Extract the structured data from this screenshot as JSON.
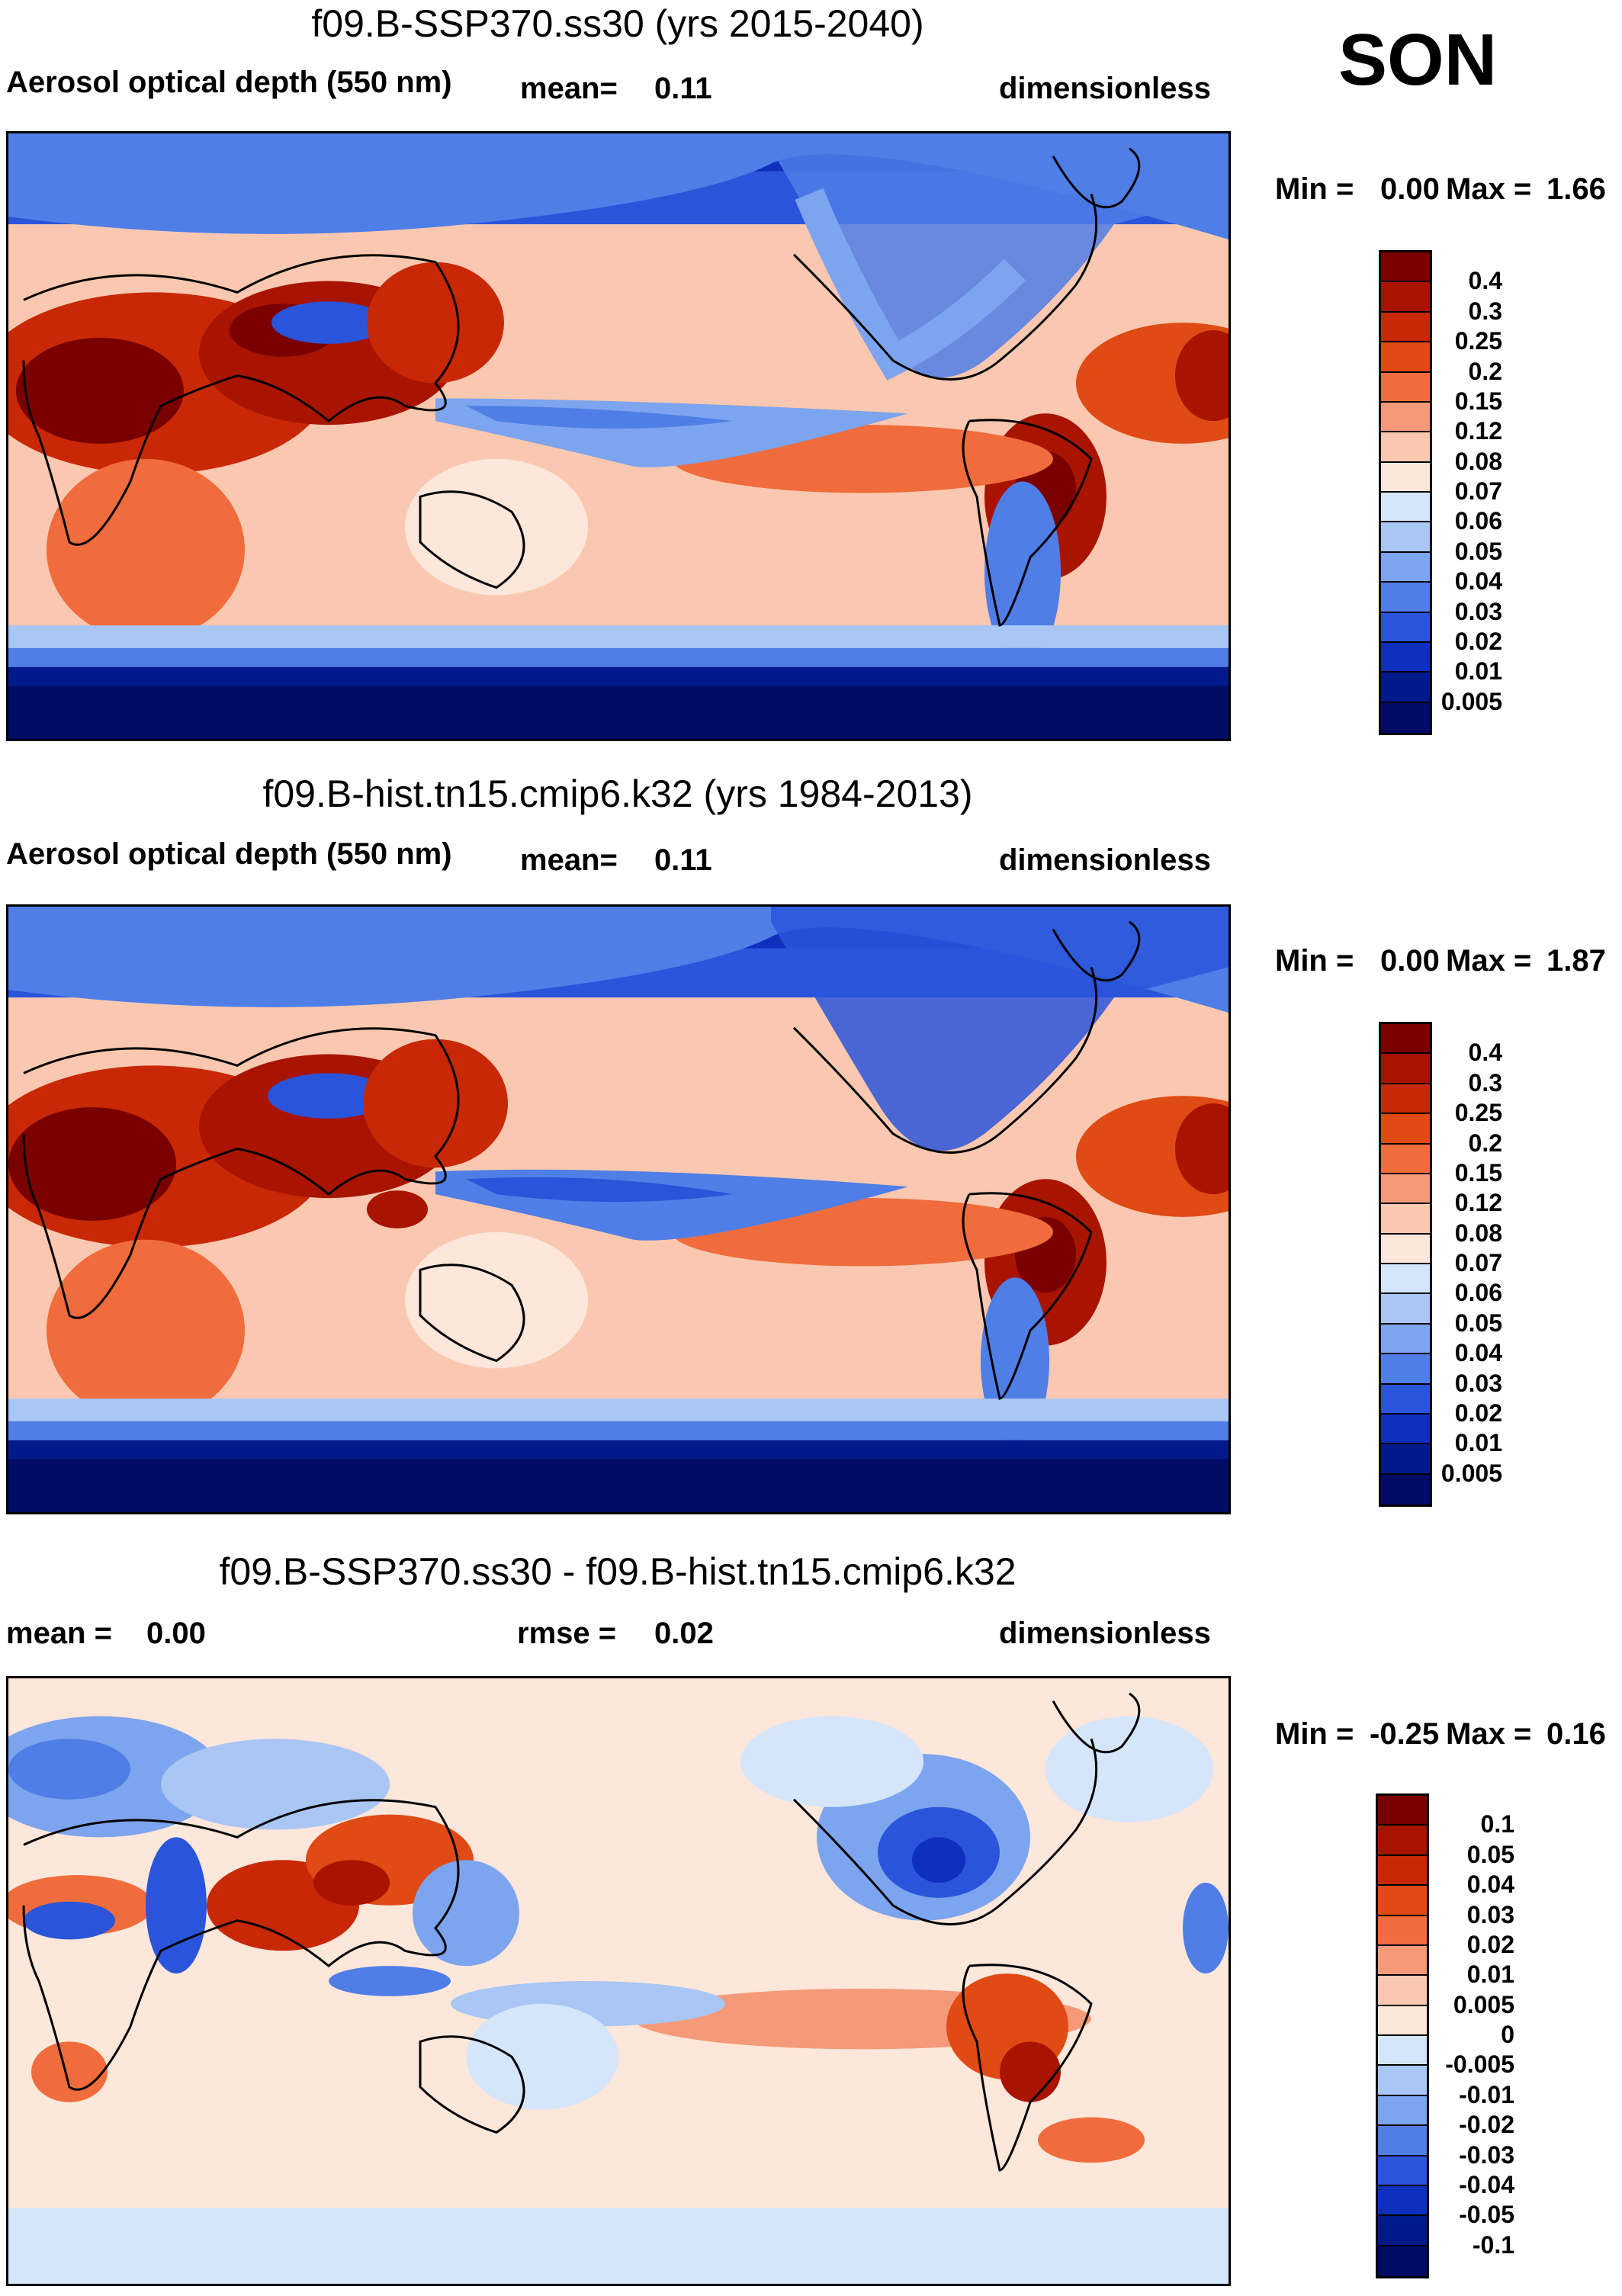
{
  "season": "SON",
  "panels": [
    {
      "title": "f09.B-SSP370.ss30 (yrs 2015-2040)",
      "left_label": "Aerosol optical depth (550 nm)",
      "mean_label": "mean=",
      "mean_value": "0.11",
      "units": "dimensionless",
      "min_label": "Min =",
      "min_value": "0.00",
      "max_label": "Max =",
      "max_value": "1.66",
      "levels": [
        "0.4",
        "0.3",
        "0.25",
        "0.2",
        "0.15",
        "0.12",
        "0.08",
        "0.07",
        "0.06",
        "0.05",
        "0.04",
        "0.03",
        "0.02",
        "0.01",
        "0.005"
      ]
    },
    {
      "title": "f09.B-hist.tn15.cmip6.k32 (yrs 1984-2013)",
      "left_label": "Aerosol optical depth (550 nm)",
      "mean_label": "mean=",
      "mean_value": "0.11",
      "units": "dimensionless",
      "min_label": "Min =",
      "min_value": "0.00",
      "max_label": "Max =",
      "max_value": "1.87",
      "levels": [
        "0.4",
        "0.3",
        "0.25",
        "0.2",
        "0.15",
        "0.12",
        "0.08",
        "0.07",
        "0.06",
        "0.05",
        "0.04",
        "0.03",
        "0.02",
        "0.01",
        "0.005"
      ]
    },
    {
      "title": "f09.B-SSP370.ss30 - f09.B-hist.tn15.cmip6.k32",
      "left_label": "mean =",
      "left_value": "0.00",
      "rmse_label": "rmse =",
      "rmse_value": "0.02",
      "units": "dimensionless",
      "min_label": "Min =",
      "min_value": "-0.25",
      "max_label": "Max =",
      "max_value": "0.16",
      "levels": [
        "0.1",
        "0.05",
        "0.04",
        "0.03",
        "0.02",
        "0.01",
        "0.005",
        "0",
        "-0.005",
        "-0.01",
        "-0.02",
        "-0.03",
        "-0.04",
        "-0.05",
        "-0.1"
      ]
    }
  ],
  "colors": {
    "abs_scale": [
      "#7a0000",
      "#a81400",
      "#c82806",
      "#e04a14",
      "#f06c3c",
      "#f59a78",
      "#fac8b0",
      "#fde6da",
      "#d6e6fa",
      "#a9c6f5",
      "#7da4ee",
      "#4f7ee6",
      "#2a55da",
      "#0f2fbf",
      "#001a8c",
      "#000c66"
    ],
    "diff_scale": [
      "#7a0000",
      "#a81400",
      "#c82806",
      "#e04a14",
      "#f06c3c",
      "#f59a78",
      "#fac8b0",
      "#fde6da",
      "#d6e6fa",
      "#a9c6f5",
      "#7da4ee",
      "#4f7ee6",
      "#2a55da",
      "#0f2fbf",
      "#001a8c",
      "#000c66"
    ]
  }
}
